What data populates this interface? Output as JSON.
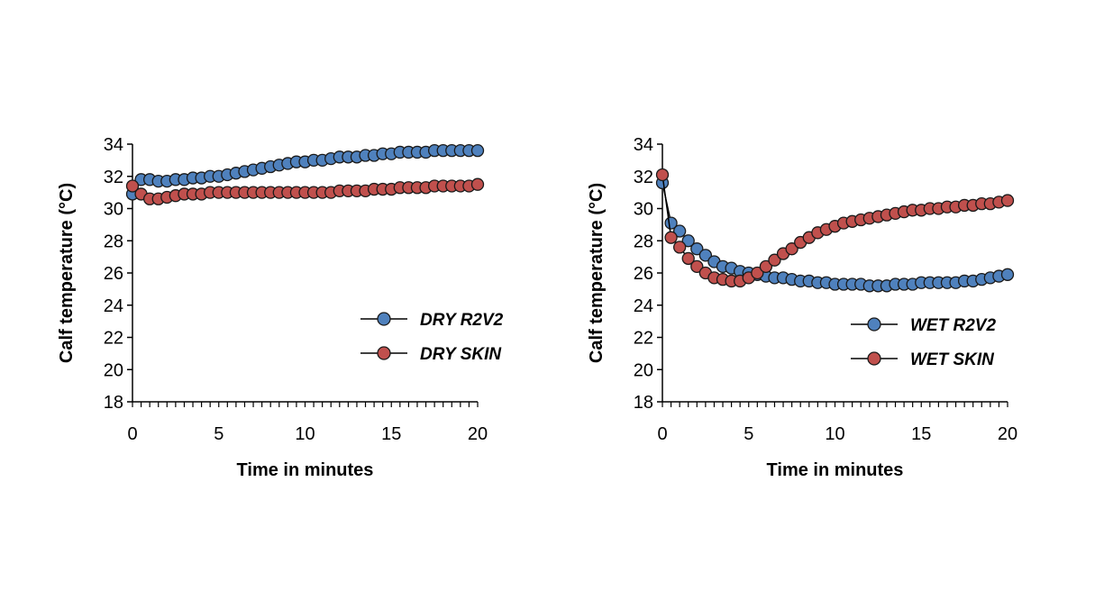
{
  "colors": {
    "r2v2": "#4f81bd",
    "skin": "#c0504d",
    "marker_edge": "#1a1a1a",
    "axis": "#000000"
  },
  "chart_data": [
    {
      "type": "line",
      "title": "",
      "xlabel": "Time in minutes",
      "ylabel": "Calf temperature (°C)",
      "xlim": [
        0,
        20
      ],
      "ylim": [
        18,
        34
      ],
      "xticks": [
        "0",
        "5",
        "10",
        "15",
        "20"
      ],
      "yticks": [
        "18",
        "20",
        "22",
        "24",
        "26",
        "28",
        "30",
        "32",
        "34"
      ],
      "grid": false,
      "legend_position": "lower-right",
      "x": [
        0,
        0.5,
        1,
        1.5,
        2,
        2.5,
        3,
        3.5,
        4,
        4.5,
        5,
        5.5,
        6,
        6.5,
        7,
        7.5,
        8,
        8.5,
        9,
        9.5,
        10,
        10.5,
        11,
        11.5,
        12,
        12.5,
        13,
        13.5,
        14,
        14.5,
        15,
        15.5,
        16,
        16.5,
        17,
        17.5,
        18,
        18.5,
        19,
        19.5,
        20
      ],
      "series": [
        {
          "name": "DRY R2V2",
          "color_key": "r2v2",
          "values": [
            30.9,
            31.8,
            31.8,
            31.7,
            31.7,
            31.8,
            31.8,
            31.9,
            31.9,
            32.0,
            32.0,
            32.1,
            32.2,
            32.3,
            32.4,
            32.5,
            32.6,
            32.7,
            32.8,
            32.9,
            32.9,
            33.0,
            33.0,
            33.1,
            33.2,
            33.2,
            33.2,
            33.3,
            33.3,
            33.4,
            33.4,
            33.5,
            33.5,
            33.5,
            33.5,
            33.6,
            33.6,
            33.6,
            33.6,
            33.6,
            33.6
          ]
        },
        {
          "name": "DRY SKIN",
          "color_key": "skin",
          "values": [
            31.4,
            30.9,
            30.6,
            30.6,
            30.7,
            30.8,
            30.9,
            30.9,
            30.9,
            31.0,
            31.0,
            31.0,
            31.0,
            31.0,
            31.0,
            31.0,
            31.0,
            31.0,
            31.0,
            31.0,
            31.0,
            31.0,
            31.0,
            31.0,
            31.1,
            31.1,
            31.1,
            31.1,
            31.2,
            31.2,
            31.2,
            31.3,
            31.3,
            31.3,
            31.3,
            31.4,
            31.4,
            31.4,
            31.4,
            31.4,
            31.5
          ]
        }
      ]
    },
    {
      "type": "line",
      "title": "",
      "xlabel": "Time in minutes",
      "ylabel": "Calf temperature (°C)",
      "xlim": [
        0,
        20
      ],
      "ylim": [
        18,
        34
      ],
      "xticks": [
        "0",
        "5",
        "10",
        "15",
        "20"
      ],
      "yticks": [
        "18",
        "20",
        "22",
        "24",
        "26",
        "28",
        "30",
        "32",
        "34"
      ],
      "grid": false,
      "legend_position": "lower-right",
      "x": [
        0,
        0.5,
        1,
        1.5,
        2,
        2.5,
        3,
        3.5,
        4,
        4.5,
        5,
        5.5,
        6,
        6.5,
        7,
        7.5,
        8,
        8.5,
        9,
        9.5,
        10,
        10.5,
        11,
        11.5,
        12,
        12.5,
        13,
        13.5,
        14,
        14.5,
        15,
        15.5,
        16,
        16.5,
        17,
        17.5,
        18,
        18.5,
        19,
        19.5,
        20
      ],
      "series": [
        {
          "name": "WET R2V2",
          "color_key": "r2v2",
          "values": [
            31.6,
            29.1,
            28.6,
            28.0,
            27.5,
            27.1,
            26.7,
            26.4,
            26.3,
            26.1,
            26.0,
            25.9,
            25.8,
            25.7,
            25.7,
            25.6,
            25.5,
            25.5,
            25.4,
            25.4,
            25.3,
            25.3,
            25.3,
            25.3,
            25.2,
            25.2,
            25.2,
            25.3,
            25.3,
            25.3,
            25.4,
            25.4,
            25.4,
            25.4,
            25.4,
            25.5,
            25.5,
            25.6,
            25.7,
            25.8,
            25.9
          ]
        },
        {
          "name": "WET SKIN",
          "color_key": "skin",
          "values": [
            32.1,
            28.2,
            27.6,
            26.9,
            26.4,
            26.0,
            25.7,
            25.6,
            25.5,
            25.5,
            25.7,
            26.0,
            26.4,
            26.8,
            27.2,
            27.5,
            27.9,
            28.2,
            28.5,
            28.7,
            28.9,
            29.1,
            29.2,
            29.3,
            29.4,
            29.5,
            29.6,
            29.7,
            29.8,
            29.9,
            29.9,
            30.0,
            30.0,
            30.1,
            30.1,
            30.2,
            30.2,
            30.3,
            30.3,
            30.4,
            30.5
          ]
        }
      ]
    }
  ]
}
